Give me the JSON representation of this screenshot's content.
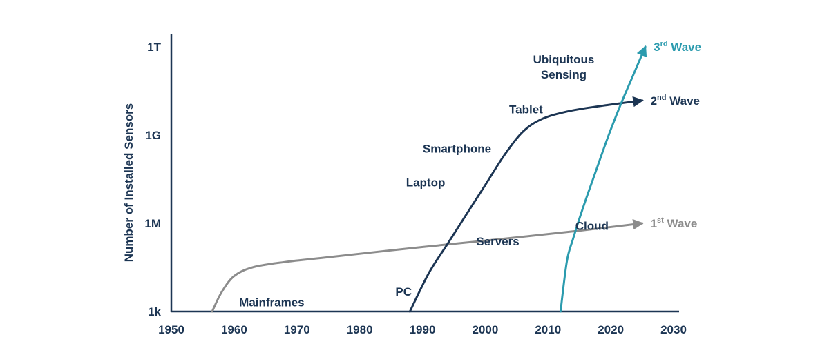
{
  "chart_data": {
    "type": "line",
    "ylabel": "Number of Installed Sensors",
    "xlim": [
      1950,
      2030
    ],
    "x_ticks": [
      "1950",
      "1960",
      "1970",
      "1980",
      "1990",
      "2000",
      "2010",
      "2020",
      "2030"
    ],
    "y_scale": "log",
    "y_ticks": [
      "1k",
      "1M",
      "1G",
      "1T"
    ],
    "grid": false,
    "colors": {
      "axis": "#1c3553",
      "text": "#1c3553",
      "wave1": "#8c8c8c",
      "wave2": "#1c3553",
      "wave3": "#2b9bae"
    },
    "series": [
      {
        "name": "1st Wave",
        "ordinal": "1",
        "suffix": "st",
        "word": "Wave",
        "color": "#8c8c8c",
        "x": [
          1956.5,
          1958,
          1960,
          1963,
          1968,
          1975,
          1985,
          1995,
          2005,
          2015,
          2025
        ],
        "y": [
          1000,
          4500,
          16000,
          32000,
          48000,
          70000,
          120000,
          200000,
          330000,
          560000,
          1000000
        ]
      },
      {
        "name": "2nd Wave",
        "ordinal": "2",
        "suffix": "nd",
        "word": "Wave",
        "color": "#1c3553",
        "x": [
          1988,
          1991,
          1994,
          1997,
          2000,
          2003,
          2006,
          2009,
          2013,
          2018,
          2025
        ],
        "y": [
          1000,
          20000,
          200000,
          2000000,
          20000000,
          200000000,
          1300000000,
          3500000000,
          6300000000,
          9500000000,
          15000000000
        ]
      },
      {
        "name": "3rd Wave",
        "ordinal": "3",
        "suffix": "rd",
        "word": "Wave",
        "color": "#2b9bae",
        "x": [
          2012,
          2013,
          2014,
          2015.5,
          2017.5,
          2019.5,
          2021.5,
          2023.5,
          2025.5
        ],
        "y": [
          1000,
          50000,
          300000,
          3000000,
          50000000,
          800000000,
          10000000000,
          100000000000,
          1000000000000
        ]
      }
    ],
    "annotations": [
      {
        "key": "mainframes",
        "lines": [
          "Mainframes"
        ],
        "x": 1966,
        "y": 1500
      },
      {
        "key": "servers",
        "lines": [
          "Servers"
        ],
        "x": 2002,
        "y": 180000
      },
      {
        "key": "cloud",
        "lines": [
          "Cloud"
        ],
        "x": 2017,
        "y": 600000
      },
      {
        "key": "pc",
        "lines": [
          "PC"
        ],
        "x": 1987,
        "y": 3500
      },
      {
        "key": "laptop",
        "lines": [
          "Laptop"
        ],
        "x": 1990.5,
        "y": 18000000
      },
      {
        "key": "smartphone",
        "lines": [
          "Smartphone"
        ],
        "x": 1995.5,
        "y": 250000000
      },
      {
        "key": "tablet",
        "lines": [
          "Tablet"
        ],
        "x": 2006.5,
        "y": 5500000000
      },
      {
        "key": "ubiquitous-sensing",
        "lines": [
          "Ubiquitous",
          "Sensing"
        ],
        "x": 2012.5,
        "y": 150000000000
      }
    ]
  }
}
